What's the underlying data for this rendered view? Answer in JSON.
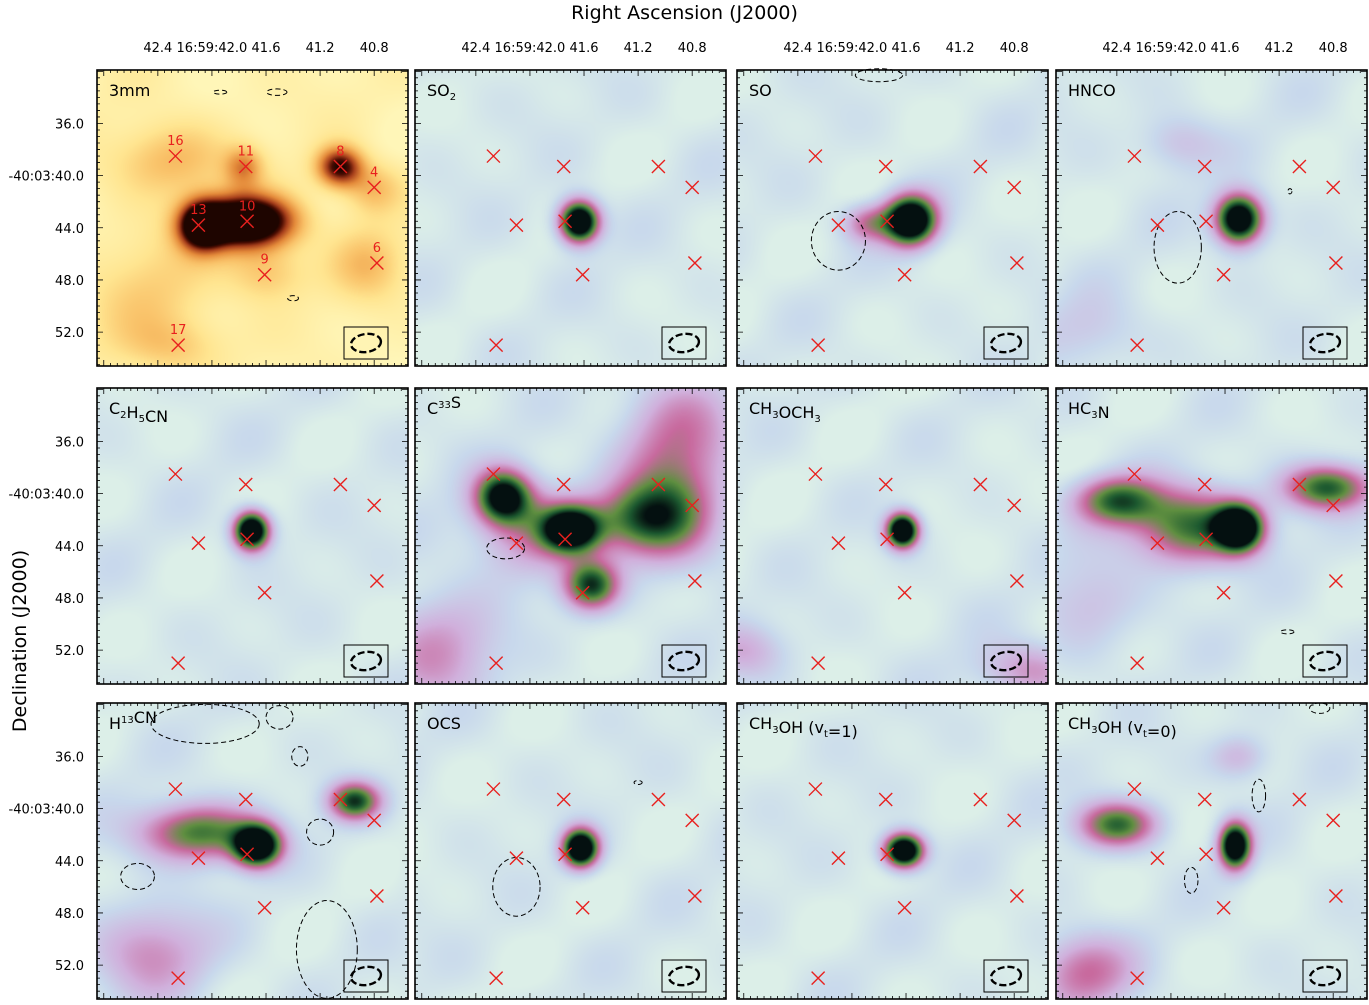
{
  "figure": {
    "xlabel": "Right Ascension (J2000)",
    "ylabel": "Declination (J2000)"
  },
  "colors": {
    "marker": "#e8201e",
    "contour": "#000000",
    "continuum_bg": "#fff3b0",
    "continuum_peak": "#2a0800",
    "line_bg": "#dcefe8",
    "line_peak": "#041010"
  },
  "chart_data": {
    "type": "heatmap",
    "layout_grid": {
      "rows": 3,
      "cols": 4
    },
    "x_axis": {
      "label": "Right Ascension (J2000)",
      "ticks": [
        {
          "value": 42.4,
          "label": "42.4"
        },
        {
          "value": 42.0,
          "label": "16:59:42.0"
        },
        {
          "value": 41.6,
          "label": "41.6"
        },
        {
          "value": 41.2,
          "label": "41.2"
        },
        {
          "value": 40.8,
          "label": "40.8"
        }
      ],
      "xlim": [
        42.85,
        40.55
      ],
      "direction": "reversed"
    },
    "y_axis": {
      "label": "Declination (J2000)",
      "ticks": [
        {
          "value": 36.0,
          "label": "36.0"
        },
        {
          "value": 40.0,
          "label": "-40:03:40.0"
        },
        {
          "value": 44.0,
          "label": "44.0"
        },
        {
          "value": 48.0,
          "label": "48.0"
        },
        {
          "value": 52.0,
          "label": "52.0"
        }
      ],
      "ylim": [
        31.9,
        54.6
      ],
      "direction": "down"
    },
    "sources": [
      {
        "id": "16",
        "x": 42.27,
        "y": 38.5,
        "label_shown": true
      },
      {
        "id": "11",
        "x": 41.75,
        "y": 39.3,
        "label_shown": true
      },
      {
        "id": "8",
        "x": 41.05,
        "y": 39.3,
        "label_shown": true
      },
      {
        "id": "4",
        "x": 40.8,
        "y": 40.9,
        "label_shown": true
      },
      {
        "id": "13",
        "x": 42.1,
        "y": 43.8,
        "label_shown": true
      },
      {
        "id": "10",
        "x": 41.74,
        "y": 43.5,
        "label_shown": true
      },
      {
        "id": "9",
        "x": 41.61,
        "y": 47.6,
        "label_shown": true
      },
      {
        "id": "6",
        "x": 40.78,
        "y": 46.7,
        "label_shown": true
      },
      {
        "id": "17",
        "x": 42.25,
        "y": 53.0,
        "label_shown": true
      }
    ],
    "panels": [
      {
        "title": "3mm",
        "cmap": "continuum",
        "blobs": [
          {
            "x": 41.74,
            "y": 43.5,
            "sx": 0.24,
            "sy": 1.4,
            "amp": 1.5
          },
          {
            "x": 42.08,
            "y": 43.8,
            "sx": 0.12,
            "sy": 1.3,
            "amp": 1.15
          },
          {
            "x": 41.06,
            "y": 39.3,
            "sx": 0.12,
            "sy": 1.1,
            "amp": 0.95
          },
          {
            "x": 41.77,
            "y": 39.3,
            "sx": 0.1,
            "sy": 1.1,
            "amp": 0.45
          },
          {
            "x": 42.3,
            "y": 38.8,
            "sx": 0.3,
            "sy": 2.0,
            "amp": 0.35
          },
          {
            "x": 40.82,
            "y": 41.0,
            "sx": 0.15,
            "sy": 1.4,
            "amp": 0.35
          },
          {
            "x": 41.6,
            "y": 47.4,
            "sx": 0.2,
            "sy": 1.5,
            "amp": 0.3
          },
          {
            "x": 40.85,
            "y": 46.8,
            "sx": 0.2,
            "sy": 2.0,
            "amp": 0.3
          },
          {
            "x": 42.45,
            "y": 49.0,
            "sx": 0.35,
            "sy": 3.5,
            "amp": 0.22
          },
          {
            "x": 42.3,
            "y": 53.0,
            "sx": 0.25,
            "sy": 1.5,
            "amp": 0.22
          }
        ],
        "contours": [
          {
            "x": 41.94,
            "y": 33.6,
            "w": 0.1,
            "h": 0.3
          },
          {
            "x": 41.52,
            "y": 33.6,
            "w": 0.15,
            "h": 0.5
          },
          {
            "x": 41.4,
            "y": 49.4,
            "w": 0.08,
            "h": 0.4
          }
        ]
      },
      {
        "title": "SO",
        "sub": "2",
        "cmap": "line",
        "blobs": [
          {
            "x": 41.64,
            "y": 43.5,
            "sx": 0.1,
            "sy": 1.1,
            "amp": 1.4
          }
        ],
        "contours": []
      },
      {
        "title": "SO",
        "cmap": "line",
        "blobs": [
          {
            "x": 41.57,
            "y": 43.4,
            "sx": 0.13,
            "sy": 1.3,
            "amp": 1.4
          },
          {
            "x": 41.88,
            "y": 43.6,
            "sx": 0.13,
            "sy": 1.0,
            "amp": 0.45
          }
        ],
        "contours": [
          {
            "x": 42.1,
            "y": 45.0,
            "w": 0.4,
            "h": 4.5
          },
          {
            "x": 41.8,
            "y": 32.3,
            "w": 0.35,
            "h": 1.0
          }
        ]
      },
      {
        "title": "HNCO",
        "cmap": "line",
        "blobs": [
          {
            "x": 41.5,
            "y": 43.3,
            "sx": 0.12,
            "sy": 1.3,
            "amp": 1.3
          },
          {
            "x": 41.95,
            "y": 37.5,
            "sx": 0.2,
            "sy": 1.5,
            "amp": 0.2
          },
          {
            "x": 42.6,
            "y": 52.0,
            "sx": 0.25,
            "sy": 2.0,
            "amp": 0.15
          }
        ],
        "contours": [
          {
            "x": 41.95,
            "y": 45.5,
            "w": 0.35,
            "h": 5.5
          },
          {
            "x": 41.12,
            "y": 41.2,
            "w": 0.02,
            "h": 0.4
          }
        ]
      },
      {
        "title": "C",
        "sub": "2",
        "title2": "H",
        "sub2": "5",
        "title3": "CN",
        "cmap": "line",
        "blobs": [
          {
            "x": 41.71,
            "y": 42.8,
            "sx": 0.09,
            "sy": 1.0,
            "amp": 1.4
          }
        ],
        "contours": []
      },
      {
        "title": "C",
        "sup": "33",
        "title2": "S",
        "cmap": "line",
        "blobs": [
          {
            "x": 42.2,
            "y": 40.2,
            "sx": 0.14,
            "sy": 1.4,
            "amp": 1.0
          },
          {
            "x": 41.7,
            "y": 42.7,
            "sx": 0.15,
            "sy": 1.2,
            "amp": 1.1
          },
          {
            "x": 41.55,
            "y": 47.0,
            "sx": 0.14,
            "sy": 1.3,
            "amp": 0.85
          },
          {
            "x": 41.2,
            "y": 42.0,
            "sx": 0.25,
            "sy": 1.8,
            "amp": 0.55
          },
          {
            "x": 40.95,
            "y": 41.0,
            "sx": 0.25,
            "sy": 3.0,
            "amp": 0.55
          },
          {
            "x": 42.0,
            "y": 42.5,
            "sx": 0.3,
            "sy": 2.5,
            "amp": 0.4
          },
          {
            "x": 42.7,
            "y": 52.0,
            "sx": 0.3,
            "sy": 3.0,
            "amp": 0.35
          },
          {
            "x": 40.9,
            "y": 35.0,
            "sx": 0.3,
            "sy": 3.0,
            "amp": 0.35
          }
        ],
        "contours": [
          {
            "x": 42.18,
            "y": 44.2,
            "w": 0.28,
            "h": 1.6
          }
        ]
      },
      {
        "title": "CH",
        "sub": "3",
        "title2": "OCH",
        "sub2": "3",
        "cmap": "line",
        "blobs": [
          {
            "x": 41.63,
            "y": 42.8,
            "sx": 0.08,
            "sy": 0.9,
            "amp": 1.4
          },
          {
            "x": 40.7,
            "y": 53.5,
            "sx": 0.25,
            "sy": 1.5,
            "amp": 0.35
          },
          {
            "x": 42.8,
            "y": 52.0,
            "sx": 0.2,
            "sy": 1.5,
            "amp": 0.25
          }
        ],
        "contours": []
      },
      {
        "title": "HC",
        "sub": "3",
        "title2": "N",
        "cmap": "line",
        "blobs": [
          {
            "x": 41.5,
            "y": 42.6,
            "sx": 0.12,
            "sy": 1.2,
            "amp": 1.3
          },
          {
            "x": 41.85,
            "y": 42.5,
            "sx": 0.3,
            "sy": 2.0,
            "amp": 0.75
          },
          {
            "x": 42.4,
            "y": 40.5,
            "sx": 0.22,
            "sy": 1.3,
            "amp": 0.75
          },
          {
            "x": 40.85,
            "y": 39.5,
            "sx": 0.22,
            "sy": 1.2,
            "amp": 0.8
          },
          {
            "x": 42.6,
            "y": 48.5,
            "sx": 0.25,
            "sy": 2.5,
            "amp": 0.2
          }
        ],
        "contours": [
          {
            "x": 41.14,
            "y": 50.6,
            "w": 0.1,
            "h": 0.3
          }
        ]
      },
      {
        "title": "H",
        "sup": "13",
        "title2": "CN",
        "cmap": "line",
        "blobs": [
          {
            "x": 41.67,
            "y": 42.8,
            "sx": 0.12,
            "sy": 1.1,
            "amp": 1.3
          },
          {
            "x": 42.1,
            "y": 41.8,
            "sx": 0.3,
            "sy": 1.5,
            "amp": 0.75
          },
          {
            "x": 40.95,
            "y": 39.4,
            "sx": 0.13,
            "sy": 1.0,
            "amp": 0.85
          },
          {
            "x": 42.45,
            "y": 51.0,
            "sx": 0.3,
            "sy": 2.5,
            "amp": 0.35
          }
        ],
        "contours": [
          {
            "x": 42.05,
            "y": 33.5,
            "w": 0.8,
            "h": 3.0
          },
          {
            "x": 41.5,
            "y": 33.0,
            "w": 0.2,
            "h": 1.8
          },
          {
            "x": 41.15,
            "y": 50.8,
            "w": 0.45,
            "h": 7.5
          },
          {
            "x": 41.2,
            "y": 41.8,
            "w": 0.2,
            "h": 2.0
          },
          {
            "x": 42.55,
            "y": 45.2,
            "w": 0.25,
            "h": 2.0
          },
          {
            "x": 41.35,
            "y": 36.0,
            "w": 0.12,
            "h": 1.5
          }
        ]
      },
      {
        "title": "OCS",
        "cmap": "line",
        "blobs": [
          {
            "x": 41.63,
            "y": 43.0,
            "sx": 0.09,
            "sy": 1.0,
            "amp": 1.4
          }
        ],
        "contours": [
          {
            "x": 42.1,
            "y": 46.0,
            "w": 0.35,
            "h": 4.5
          },
          {
            "x": 41.2,
            "y": 38.0,
            "w": 0.06,
            "h": 0.2
          }
        ]
      },
      {
        "title": "CH",
        "sub": "3",
        "title2": "OH (v",
        "sub2": "t",
        "title3": "=1)",
        "cmap": "line",
        "blobs": [
          {
            "x": 41.62,
            "y": 43.2,
            "sx": 0.1,
            "sy": 0.9,
            "amp": 1.4
          }
        ],
        "contours": []
      },
      {
        "title": "CH",
        "sub": "3",
        "title2": "OH (v",
        "sub2": "t",
        "title3": "=0)",
        "cmap": "line",
        "blobs": [
          {
            "x": 41.53,
            "y": 42.8,
            "sx": 0.08,
            "sy": 1.2,
            "amp": 1.3
          },
          {
            "x": 42.4,
            "y": 41.2,
            "sx": 0.2,
            "sy": 1.2,
            "amp": 0.75
          },
          {
            "x": 42.65,
            "y": 52.5,
            "sx": 0.25,
            "sy": 2.0,
            "amp": 0.45
          },
          {
            "x": 41.5,
            "y": 36.0,
            "sx": 0.15,
            "sy": 1.2,
            "amp": 0.25
          }
        ],
        "contours": [
          {
            "x": 41.35,
            "y": 39.0,
            "w": 0.1,
            "h": 2.5
          },
          {
            "x": 41.85,
            "y": 45.5,
            "w": 0.1,
            "h": 2.0
          },
          {
            "x": 40.9,
            "y": 32.3,
            "w": 0.15,
            "h": 0.8
          }
        ]
      }
    ]
  }
}
